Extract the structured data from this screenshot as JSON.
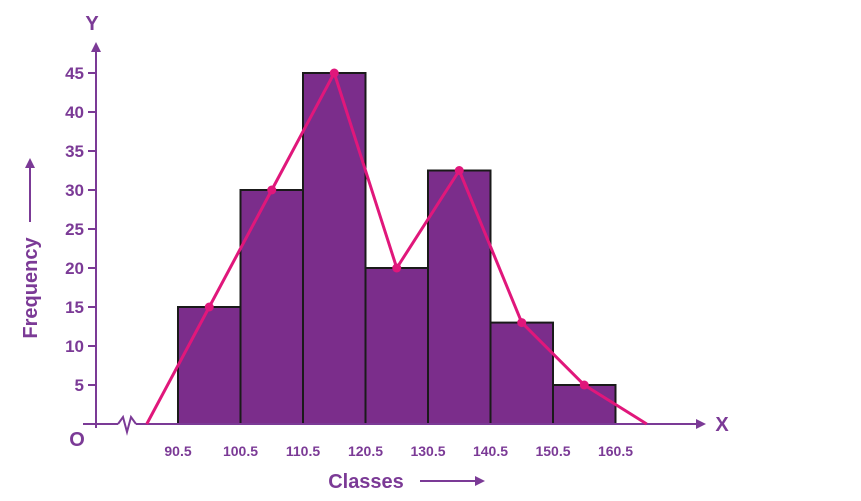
{
  "chart_data": {
    "type": "bar",
    "subtype": "histogram with frequency polygon",
    "xlabel": "Classes",
    "ylabel": "Frequency",
    "x_axis_letter": "X",
    "y_axis_letter": "Y",
    "origin_label": "O",
    "class_boundaries": [
      "90.5",
      "100.5",
      "110.5",
      "120.5",
      "130.5",
      "140.5",
      "150.5",
      "160.5"
    ],
    "y_ticks": [
      "5",
      "10",
      "15",
      "20",
      "25",
      "30",
      "35",
      "40",
      "45"
    ],
    "ylim": [
      0,
      45
    ],
    "series": [
      {
        "values": [
          15,
          30,
          45,
          20,
          32.5,
          13,
          5
        ],
        "kind": "histogram"
      },
      {
        "kind": "frequency-polygon",
        "x": [
          85.5,
          95.5,
          105.5,
          115.5,
          125.5,
          135.5,
          145.5,
          155.5,
          165.5
        ],
        "y": [
          0,
          15,
          30,
          45,
          20,
          32.5,
          13,
          5,
          0
        ]
      }
    ],
    "colors": {
      "bar_fill": "#7b2d8b",
      "bar_edge": "#1a1a1a",
      "axis": "#7b3a96",
      "label": "#7b3a96",
      "polygon": "#e0177b",
      "background": "#ffffff"
    },
    "grid": false,
    "axis_break": true
  }
}
